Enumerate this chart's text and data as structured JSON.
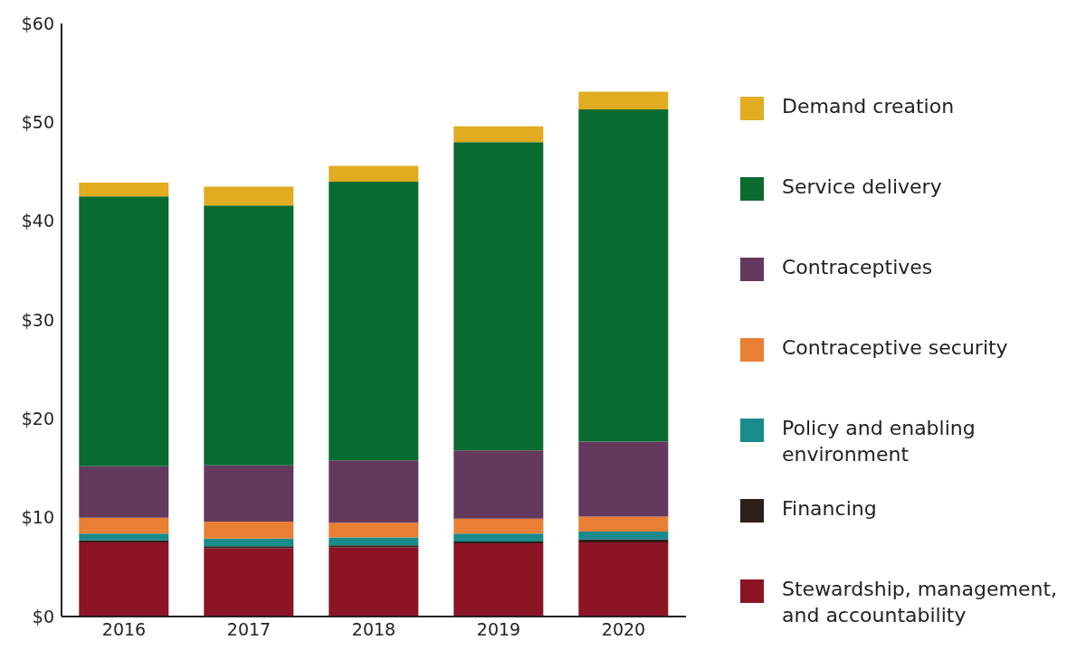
{
  "chart_data": {
    "type": "bar",
    "stacked": true,
    "categories": [
      "2016",
      "2017",
      "2018",
      "2019",
      "2020"
    ],
    "series": [
      {
        "name": "Stewardship, management, and accountability",
        "color": "#8b1425",
        "values": [
          7.5,
          6.9,
          7.0,
          7.4,
          7.5
        ]
      },
      {
        "name": "Financing",
        "color": "#2e1f1a",
        "values": [
          0.2,
          0.2,
          0.2,
          0.2,
          0.3
        ]
      },
      {
        "name": "Policy and enabling environment",
        "color": "#1a8b8c",
        "values": [
          0.7,
          0.8,
          0.8,
          0.8,
          0.8
        ]
      },
      {
        "name": "Contraceptive security",
        "color": "#e87f35",
        "values": [
          1.6,
          1.7,
          1.5,
          1.5,
          1.5
        ]
      },
      {
        "name": "Contraceptives",
        "color": "#633a5e",
        "values": [
          5.2,
          5.7,
          6.3,
          6.9,
          7.6
        ]
      },
      {
        "name": "Service delivery",
        "color": "#096b30",
        "values": [
          27.3,
          26.3,
          28.2,
          31.2,
          33.6
        ]
      },
      {
        "name": "Demand creation",
        "color": "#e1ac20",
        "values": [
          1.4,
          1.9,
          1.6,
          1.6,
          1.8
        ]
      }
    ],
    "ylim": [
      0,
      60
    ],
    "yticks": [
      {
        "value": 0,
        "label": "$0"
      },
      {
        "value": 10,
        "label": "$10"
      },
      {
        "value": 20,
        "label": "$20"
      },
      {
        "value": 30,
        "label": "$30"
      },
      {
        "value": 40,
        "label": "$40"
      },
      {
        "value": 50,
        "label": "$50"
      },
      {
        "value": 60,
        "label": "$60"
      }
    ],
    "legend": "right"
  }
}
